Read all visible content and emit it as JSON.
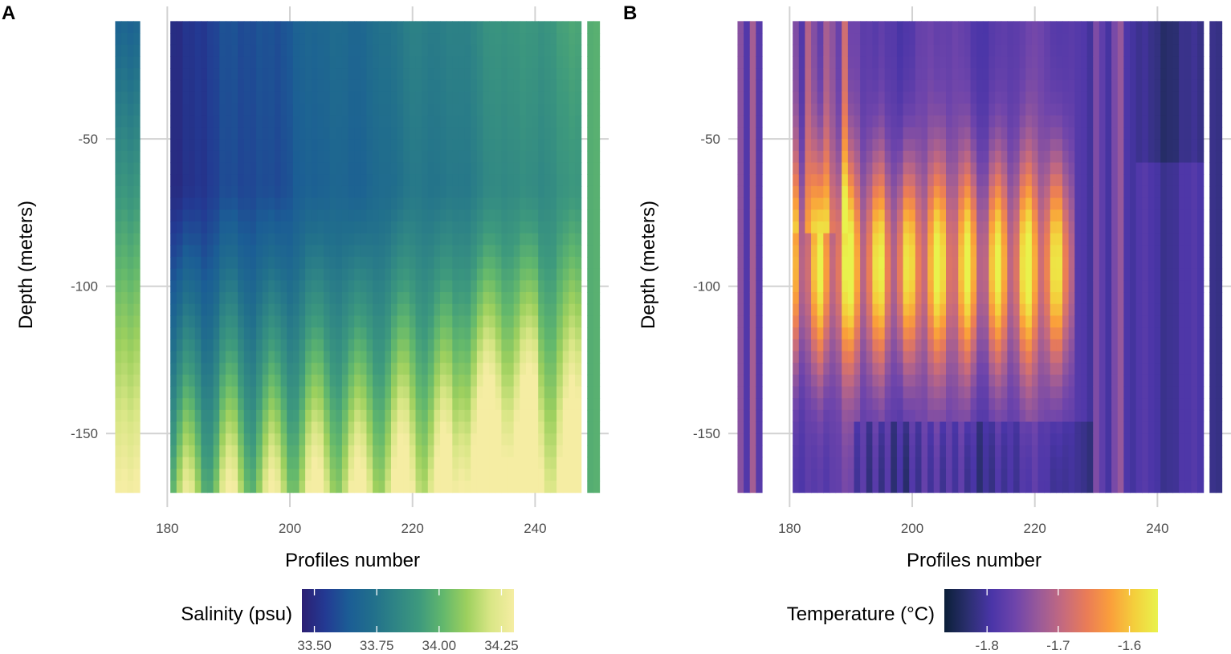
{
  "chart_data": [
    {
      "type": "heatmap",
      "panel": "A",
      "xlabel": "Profiles  number",
      "ylabel": "Depth (meters)",
      "xlim": [
        170,
        252
      ],
      "ylim": [
        -175,
        -5
      ],
      "x_ticks": [
        "180",
        "200",
        "220",
        "240"
      ],
      "y_ticks": [
        "-50",
        "-100",
        "-150"
      ],
      "depth_top": -10,
      "depth_bottom": -170,
      "profiles": [
        172,
        173,
        174,
        175,
        181,
        182,
        183,
        184,
        185,
        186,
        187,
        188,
        189,
        190,
        191,
        192,
        193,
        194,
        195,
        196,
        197,
        198,
        199,
        200,
        201,
        202,
        203,
        204,
        205,
        206,
        207,
        208,
        209,
        210,
        211,
        212,
        213,
        214,
        215,
        216,
        217,
        218,
        219,
        220,
        221,
        222,
        223,
        224,
        225,
        226,
        227,
        228,
        229,
        230,
        231,
        232,
        233,
        234,
        235,
        236,
        237,
        238,
        239,
        240,
        241,
        242,
        243,
        244,
        245,
        246,
        247,
        249,
        250
      ],
      "legend": {
        "title": "Salinity (psu)",
        "range": [
          33.45,
          34.3
        ],
        "ticks": [
          "33.50",
          "33.75",
          "34.00",
          "34.25"
        ],
        "colors": [
          "#2c1f73",
          "#233a93",
          "#1b5d95",
          "#216f8c",
          "#2f8585",
          "#3e9a7d",
          "#63b86c",
          "#9dd05e",
          "#d8e685",
          "#f5eda3"
        ]
      }
    },
    {
      "type": "heatmap",
      "panel": "B",
      "xlabel": "Profiles number",
      "ylabel": "Depth (meters)",
      "xlim": [
        170,
        252
      ],
      "ylim": [
        -175,
        -5
      ],
      "x_ticks": [
        "180",
        "200",
        "220",
        "240"
      ],
      "y_ticks": [
        "-50",
        "-100",
        "-150"
      ],
      "depth_top": -10,
      "depth_bottom": -170,
      "profiles": [
        172,
        173,
        174,
        175,
        181,
        182,
        183,
        184,
        185,
        186,
        187,
        188,
        189,
        190,
        191,
        192,
        193,
        194,
        195,
        196,
        197,
        198,
        199,
        200,
        201,
        202,
        203,
        204,
        205,
        206,
        207,
        208,
        209,
        210,
        211,
        212,
        213,
        214,
        215,
        216,
        217,
        218,
        219,
        220,
        221,
        222,
        223,
        224,
        225,
        226,
        227,
        228,
        229,
        230,
        231,
        232,
        233,
        234,
        235,
        236,
        237,
        238,
        239,
        240,
        241,
        242,
        243,
        244,
        245,
        246,
        247,
        249,
        250
      ],
      "legend": {
        "title": "Temperature (°C)",
        "range": [
          -1.86,
          -1.56
        ],
        "ticks": [
          "-1.8",
          "-1.7",
          "-1.6"
        ],
        "colors": [
          "#0b1f38",
          "#2b2f70",
          "#4a35a8",
          "#6f45ab",
          "#9a5a99",
          "#c56a7e",
          "#ea7c57",
          "#fa9f3b",
          "#f4cf3c",
          "#e9f24c"
        ]
      }
    }
  ]
}
